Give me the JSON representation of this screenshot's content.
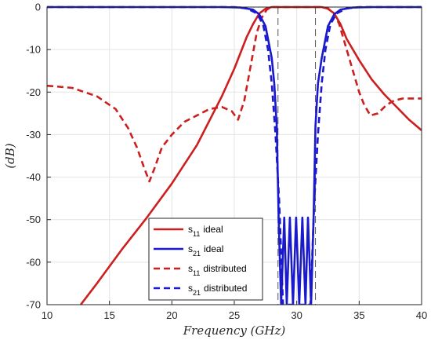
{
  "chart_data": {
    "type": "line",
    "xlabel": "Frequency (GHz)",
    "ylabel": "(dB)",
    "xlim": [
      10,
      40
    ],
    "ylim": [
      -70,
      0
    ],
    "x_ticks": [
      "10",
      "15",
      "20",
      "25",
      "30",
      "35",
      "40"
    ],
    "y_ticks": [
      "0",
      "-10",
      "-20",
      "-30",
      "-40",
      "-50",
      "-60",
      "-70"
    ],
    "grid": true,
    "legend_position": "bottom-center",
    "colors": {
      "red": "#cc1f1f",
      "blue": "#1a1acc",
      "marker_line": "#555555"
    },
    "markers": [
      28.5,
      31.5
    ],
    "series": [
      {
        "name": "s11 ideal",
        "name_main": "s",
        "name_sub": "11",
        "name_rest": "ideal",
        "color": "#cc1f1f",
        "style": "solid",
        "x": [
          12.7,
          14,
          16,
          18,
          20,
          22,
          24,
          25,
          26,
          26.5,
          27,
          27.5,
          28,
          29,
          30,
          31,
          32,
          32.5,
          33,
          33.5,
          34,
          35,
          36,
          37,
          38,
          39,
          40
        ],
        "y": [
          -70,
          -65,
          -57,
          -49.5,
          -41.5,
          -32.5,
          -21,
          -14.5,
          -7,
          -4,
          -1.5,
          -0.4,
          0,
          0,
          0,
          0,
          0,
          -0.4,
          -1.5,
          -4,
          -7.5,
          -12.5,
          -17,
          -20.5,
          -23.5,
          -26.5,
          -29
        ]
      },
      {
        "name": "s21 ideal",
        "name_main": "s",
        "name_sub": "21",
        "name_rest": "ideal",
        "color": "#1a1acc",
        "style": "solid",
        "x": [
          10,
          24,
          25.5,
          26.5,
          27,
          27.5,
          28,
          28.2,
          28.4,
          28.55,
          28.75,
          29.0,
          29.2,
          29.45,
          29.7,
          29.95,
          30.2,
          30.45,
          30.7,
          30.9,
          31.15,
          31.35,
          31.5,
          31.7,
          32.0,
          32.5,
          33,
          33.5,
          34.5,
          36,
          40
        ],
        "y": [
          0,
          0,
          -0.1,
          -0.6,
          -1.7,
          -4.5,
          -12,
          -18,
          -28,
          -49.5,
          -70,
          -49.5,
          -70,
          -49.5,
          -70,
          -49.5,
          -70,
          -49.5,
          -70,
          -49.5,
          -70,
          -49.5,
          -28,
          -18,
          -12,
          -4.5,
          -1.7,
          -0.6,
          -0.1,
          0,
          0
        ]
      },
      {
        "name": "s11 distributed",
        "name_main": "s",
        "name_sub": "11",
        "name_rest": "distributed",
        "color": "#cc1f1f",
        "style": "dashed",
        "x": [
          10,
          12,
          14,
          15.5,
          16.5,
          17.2,
          17.8,
          18.2,
          18.6,
          19.2,
          20,
          21,
          22,
          23,
          24,
          24.8,
          25.3,
          25.8,
          26.3,
          26.8,
          27.2,
          27.6,
          28,
          32,
          32.5,
          33,
          33.4,
          33.8,
          34.2,
          34.6,
          35.0,
          35.4,
          35.9,
          36.5,
          37.2,
          37.8,
          38.5,
          39.2,
          40
        ],
        "y": [
          -18.5,
          -19,
          -21,
          -24,
          -28.5,
          -33,
          -38,
          -41,
          -38,
          -33,
          -30,
          -27,
          -25.5,
          -24,
          -23.5,
          -24.5,
          -26.5,
          -22,
          -14,
          -6,
          -2.5,
          -0.6,
          0,
          0,
          -0.3,
          -1.5,
          -4,
          -8,
          -12,
          -16,
          -20,
          -23,
          -25.5,
          -25,
          -23,
          -22,
          -21.5,
          -21.5,
          -21.5
        ]
      },
      {
        "name": "s21 distributed",
        "name_main": "s",
        "name_sub": "21",
        "name_rest": "distributed",
        "color": "#1a1acc",
        "style": "dashed",
        "x": [
          10,
          25,
          26,
          26.8,
          27.3,
          27.7,
          28,
          28.3,
          28.6,
          28.9,
          31.1,
          31.4,
          31.7,
          32.0,
          32.3,
          32.7,
          33.2,
          34.0,
          35,
          40
        ],
        "y": [
          0,
          0,
          -0.3,
          -1.5,
          -4,
          -10,
          -18,
          -30,
          -46,
          -70,
          -70,
          -46,
          -30,
          -18,
          -10,
          -4,
          -1.5,
          -0.3,
          0,
          0
        ]
      }
    ]
  }
}
